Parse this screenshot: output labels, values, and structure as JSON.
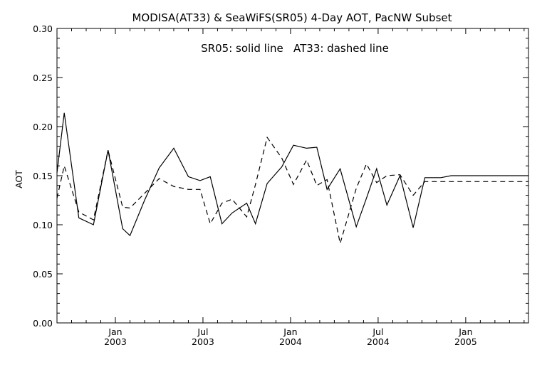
{
  "chart_data": {
    "type": "line",
    "title": "MODISA(AT33) & SeaWiFS(SR05) 4-Day AOT, PacNW Subset",
    "annotation": "SR05: solid line   AT33: dashed line",
    "ylabel": "AOT",
    "xlabel": "",
    "ylim": [
      0.0,
      0.3
    ],
    "xlim_months": [
      -4.0,
      28.3
    ],
    "yticks": [
      "0.00",
      "0.05",
      "0.10",
      "0.15",
      "0.20",
      "0.25",
      "0.30"
    ],
    "ytick_values": [
      0.0,
      0.05,
      0.1,
      0.15,
      0.2,
      0.25,
      0.3
    ],
    "xticks": [
      {
        "month": 0,
        "line1": "Jan",
        "line2": "2003"
      },
      {
        "month": 6,
        "line1": "Jul",
        "line2": "2003"
      },
      {
        "month": 12,
        "line1": "Jan",
        "line2": "2004"
      },
      {
        "month": 18,
        "line1": "Jul",
        "line2": "2004"
      },
      {
        "month": 24,
        "line1": "Jan",
        "line2": "2005"
      }
    ],
    "x_months": [
      -4.0,
      -3.5,
      -2.5,
      -1.5,
      -0.5,
      0.5,
      1.0,
      2.0,
      3.0,
      4.0,
      5.0,
      5.8,
      6.5,
      7.3,
      8.0,
      9.0,
      9.6,
      10.4,
      11.4,
      12.2,
      13.1,
      13.8,
      14.5,
      15.4,
      16.5,
      17.2,
      17.9,
      18.6,
      19.5,
      20.4,
      21.2,
      22.3,
      23.0,
      23.6,
      24.6,
      25.6,
      26.3,
      27.1,
      28.3
    ],
    "series": [
      {
        "name": "SR05",
        "style": "solid",
        "color": "#000000",
        "values": [
          0.153,
          0.214,
          0.107,
          0.1,
          0.176,
          0.096,
          0.089,
          0.125,
          0.158,
          0.178,
          0.149,
          0.145,
          0.149,
          0.101,
          0.112,
          0.122,
          0.101,
          0.142,
          0.159,
          0.181,
          0.178,
          0.179,
          0.136,
          0.157,
          0.098,
          0.127,
          0.157,
          0.12,
          0.15,
          0.097,
          0.148,
          0.148,
          0.15,
          0.15,
          0.15,
          0.15,
          0.15,
          0.15,
          0.15
        ]
      },
      {
        "name": "AT33",
        "style": "dashed",
        "color": "#000000",
        "values": [
          0.127,
          0.16,
          0.113,
          0.105,
          0.176,
          0.118,
          0.117,
          0.132,
          0.147,
          0.139,
          0.136,
          0.136,
          0.101,
          0.122,
          0.126,
          0.108,
          0.141,
          0.189,
          0.168,
          0.141,
          0.166,
          0.14,
          0.146,
          0.081,
          0.137,
          0.162,
          0.143,
          0.15,
          0.151,
          0.13,
          0.144,
          0.144,
          0.144,
          0.144,
          0.144,
          0.144,
          0.144,
          0.144,
          0.144
        ]
      }
    ],
    "grid": false
  }
}
